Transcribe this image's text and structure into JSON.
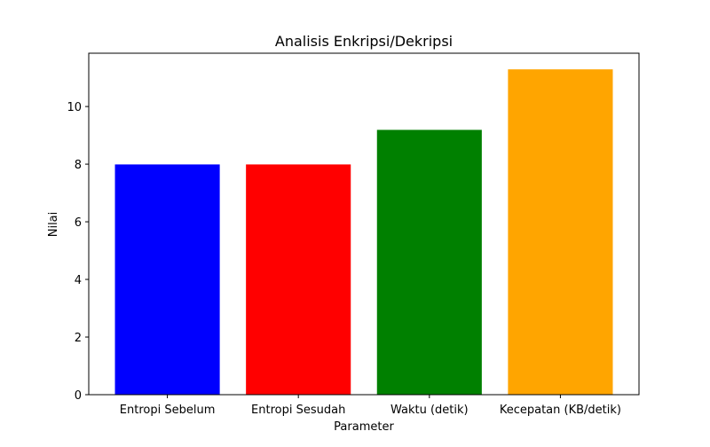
{
  "chart_data": {
    "type": "bar",
    "title": "Analisis Enkripsi/Dekripsi",
    "xlabel": "Parameter",
    "ylabel": "Nilai",
    "categories": [
      "Entropi Sebelum",
      "Entropi Sesudah",
      "Waktu (detik)",
      "Kecepatan (KB/detik)"
    ],
    "values": [
      7.99,
      7.99,
      9.19,
      11.29
    ],
    "colors": [
      "#0000ff",
      "#ff0000",
      "#008000",
      "#ffa500"
    ],
    "ylim": [
      0,
      11.85
    ],
    "yticks": [
      0,
      2,
      4,
      6,
      8,
      10
    ],
    "grid": false,
    "legend": "none"
  }
}
